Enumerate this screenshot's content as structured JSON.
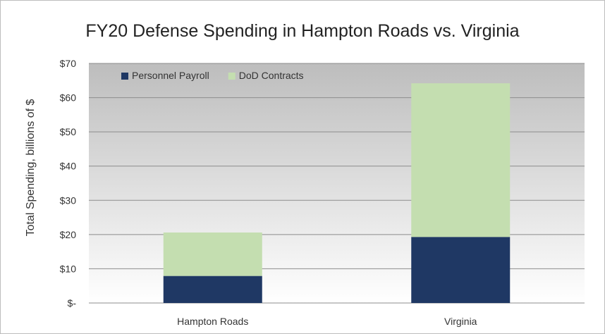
{
  "chart_data": {
    "type": "bar",
    "stacked": true,
    "title": "FY20 Defense Spending in Hampton Roads vs. Virginia",
    "xlabel": "",
    "ylabel": "Total Spending, billions of $",
    "categories": [
      "Hampton Roads",
      "Virginia"
    ],
    "series": [
      {
        "name": "Personnel Payroll",
        "values": [
          7.9,
          19.3
        ],
        "color": "#1f3864"
      },
      {
        "name": "DoD Contracts",
        "values": [
          12.7,
          44.9
        ],
        "color": "#c4deb0"
      }
    ],
    "ylim": [
      0,
      70
    ],
    "yticks": [
      0,
      10,
      20,
      30,
      40,
      50,
      60,
      70
    ],
    "ytick_labels": [
      "$-",
      "$10",
      "$20",
      "$30",
      "$40",
      "$50",
      "$60",
      "$70"
    ],
    "grid": true,
    "legend_position": "top-left",
    "plot_background": "gradient-gray"
  }
}
